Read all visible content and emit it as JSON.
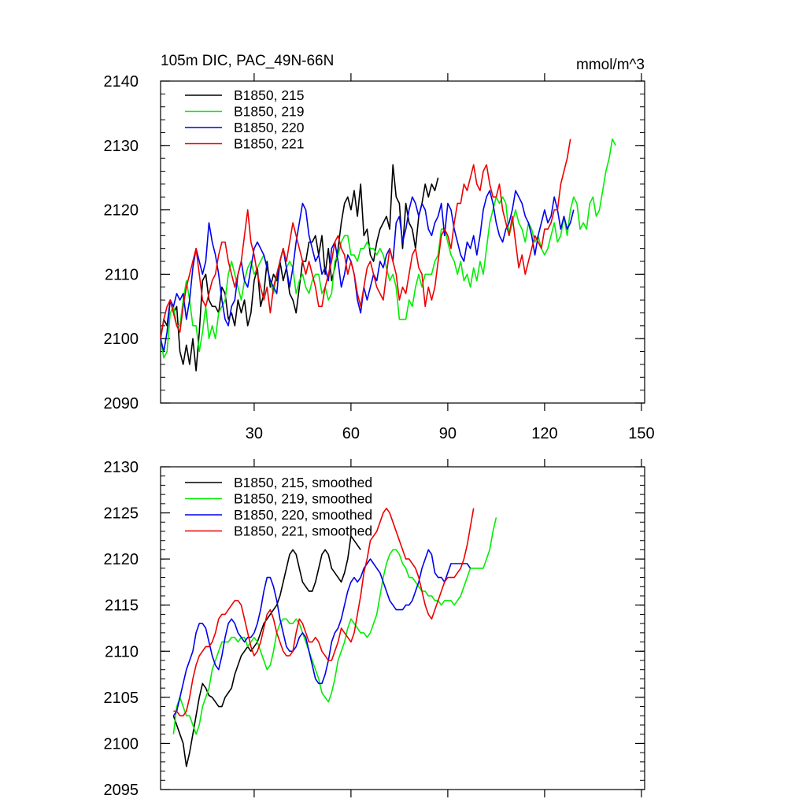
{
  "chart_data": [
    {
      "type": "line",
      "title_left": "105m DIC, PAC_49N-66N",
      "title_right": "mmol/m^3",
      "xlabel": "",
      "ylabel": "",
      "xlim": [
        1,
        151
      ],
      "ylim": [
        2090,
        2140
      ],
      "xticks": [
        30,
        60,
        90,
        120,
        150
      ],
      "yticks": [
        2090,
        2100,
        2110,
        2120,
        2130,
        2140
      ],
      "show_xtick_labels": true,
      "legend": "top-left",
      "series": [
        {
          "name": "B1850, 215",
          "color": "#000000",
          "x_start": 1,
          "values": [
            2100,
            2103,
            2102,
            2106,
            2104,
            2105,
            2098,
            2096,
            2099,
            2096,
            2100,
            2095,
            2101,
            2109,
            2110,
            2106,
            2105,
            2105,
            2104,
            2108,
            2107,
            2103,
            2104,
            2102,
            2106,
            2104,
            2106,
            2102,
            2104,
            2109,
            2111,
            2105,
            2107,
            2112,
            2108,
            2110,
            2109,
            2112,
            2109,
            2111,
            2107,
            2106,
            2104,
            2108,
            2112,
            2112,
            2115,
            2115,
            2116,
            2113,
            2116,
            2110,
            2114,
            2109,
            2111,
            2114,
            2118,
            2121,
            2122,
            2120,
            2123,
            2119,
            2124,
            2116,
            2117,
            2113,
            2112,
            2115,
            2117,
            2118,
            2119,
            2117,
            2127,
            2122,
            2121,
            2114,
            2121,
            2118,
            2117,
            2114,
            2119,
            2121,
            2124,
            2122,
            2124,
            2123,
            2125
          ]
        },
        {
          "name": "B1850, 219",
          "color": "#00ee00",
          "x_start": 1,
          "values": [
            2100,
            2097,
            2098,
            2104,
            2105,
            2102,
            2102,
            2106,
            2109,
            2106,
            2102,
            2102,
            2098,
            2101,
            2105,
            2100,
            2102,
            2100,
            2104,
            2105,
            2106,
            2110,
            2112,
            2110,
            2108,
            2106,
            2109,
            2111,
            2112,
            2110,
            2111,
            2112,
            2113,
            2111,
            2109,
            2107,
            2110,
            2112,
            2114,
            2111,
            2112,
            2111,
            2107,
            2109,
            2110,
            2108,
            2107,
            2109,
            2110,
            2110,
            2107,
            2108,
            2106,
            2107,
            2112,
            2113,
            2115,
            2116,
            2116,
            2113,
            2113,
            2112,
            2114,
            2114,
            2115,
            2114,
            2114,
            2113,
            2114,
            2113,
            2111,
            2109,
            2110,
            2108,
            2103,
            2103,
            2103,
            2106,
            2105,
            2108,
            2110,
            2108,
            2110,
            2110,
            2110,
            2112,
            2113,
            2117,
            2117,
            2115,
            2113,
            2112,
            2110,
            2112,
            2109,
            2110,
            2108,
            2111,
            2109,
            2112,
            2110,
            2114,
            2118,
            2120,
            2122,
            2121,
            2122,
            2121,
            2116,
            2118,
            2120,
            2118,
            2117,
            2115,
            2118,
            2117,
            2115,
            2116,
            2114,
            2113,
            2114,
            2116,
            2118,
            2115,
            2116,
            2119,
            2116,
            2120,
            2122,
            2121,
            2117,
            2118,
            2117,
            2121,
            2122,
            2119,
            2120,
            2123,
            2126,
            2128,
            2131,
            2130
          ]
        },
        {
          "name": "B1850, 220",
          "color": "#0000ee",
          "x_start": 1,
          "values": [
            2100,
            2098,
            2101,
            2106,
            2105,
            2107,
            2106,
            2107,
            2103,
            2106,
            2111,
            2114,
            2112,
            2110,
            2112,
            2118,
            2115,
            2113,
            2110,
            2106,
            2103,
            2102,
            2105,
            2106,
            2110,
            2112,
            2109,
            2108,
            2111,
            2114,
            2115,
            2114,
            2113,
            2111,
            2109,
            2108,
            2107,
            2112,
            2114,
            2111,
            2108,
            2111,
            2115,
            2118,
            2121,
            2120,
            2116,
            2114,
            2112,
            2113,
            2110,
            2111,
            2109,
            2114,
            2115,
            2112,
            2108,
            2110,
            2113,
            2112,
            2110,
            2106,
            2104,
            2108,
            2106,
            2108,
            2110,
            2109,
            2112,
            2111,
            2113,
            2114,
            2112,
            2118,
            2119,
            2115,
            2117,
            2120,
            2122,
            2121,
            2119,
            2121,
            2120,
            2117,
            2116,
            2118,
            2119,
            2121,
            2116,
            2121,
            2120,
            2117,
            2115,
            2113,
            2112,
            2115,
            2114,
            2116,
            2113,
            2116,
            2120,
            2122,
            2123,
            2121,
            2118,
            2116,
            2115,
            2117,
            2118,
            2120,
            2123,
            2122,
            2121,
            2119,
            2118,
            2116,
            2113,
            2116,
            2118,
            2120,
            2118,
            2119,
            2122,
            2120,
            2117,
            2119,
            2117,
            2118,
            2120
          ]
        },
        {
          "name": "B1850, 221",
          "color": "#ee0000",
          "x_start": 1,
          "values": [
            2100,
            2103,
            2105,
            2106,
            2104,
            2102,
            2101,
            2105,
            2108,
            2110,
            2112,
            2114,
            2110,
            2106,
            2105,
            2107,
            2109,
            2110,
            2113,
            2115,
            2115,
            2112,
            2110,
            2108,
            2110,
            2112,
            2116,
            2120,
            2115,
            2113,
            2110,
            2108,
            2106,
            2108,
            2104,
            2108,
            2110,
            2112,
            2114,
            2112,
            2115,
            2118,
            2116,
            2114,
            2112,
            2110,
            2112,
            2110,
            2108,
            2105,
            2105,
            2108,
            2110,
            2112,
            2115,
            2116,
            2114,
            2113,
            2110,
            2112,
            2110,
            2107,
            2105,
            2108,
            2111,
            2112,
            2110,
            2108,
            2107,
            2106,
            2110,
            2114,
            2112,
            2110,
            2106,
            2108,
            2107,
            2110,
            2113,
            2114,
            2111,
            2110,
            2105,
            2108,
            2106,
            2108,
            2112,
            2116,
            2117,
            2116,
            2114,
            2118,
            2121,
            2121,
            2124,
            2123,
            2125,
            2127,
            2124,
            2123,
            2126,
            2127,
            2124,
            2122,
            2122,
            2124,
            2120,
            2118,
            2116,
            2119,
            2115,
            2111,
            2113,
            2110,
            2112,
            2114,
            2116,
            2115,
            2114,
            2117,
            2117,
            2118,
            2120,
            2120,
            2124,
            2126,
            2128,
            2131
          ]
        }
      ]
    },
    {
      "type": "line",
      "title_left": "",
      "title_right": "",
      "xlabel": "",
      "ylabel": "",
      "xlim": [
        1,
        151
      ],
      "ylim": [
        2095,
        2130
      ],
      "xticks": [
        30,
        60,
        90,
        120,
        150
      ],
      "yticks": [
        2095,
        2100,
        2105,
        2110,
        2115,
        2120,
        2125,
        2130
      ],
      "show_xtick_labels": false,
      "legend": "top-left",
      "series": [
        {
          "name": "B1850, 215, smoothed",
          "color": "#000000",
          "x_start": 5,
          "values": [
            2103,
            2102,
            2101,
            2100,
            2097.5,
            2099,
            2101,
            2103,
            2105,
            2106.5,
            2106,
            2105.2,
            2105,
            2104.5,
            2104,
            2104,
            2105,
            2105.5,
            2106,
            2107.5,
            2108.5,
            2109.5,
            2110,
            2110.5,
            2110,
            2110.5,
            2111,
            2112,
            2113,
            2113.5,
            2114,
            2114.5,
            2115,
            2116,
            2117.5,
            2119,
            2120.5,
            2121,
            2120.5,
            2119,
            2117.5,
            2117,
            2116.5,
            2116.5,
            2117.5,
            2119,
            2120.5,
            2121,
            2120.5,
            2119,
            2118.5,
            2118,
            2117.5,
            2118.5,
            2120,
            2122.5,
            2122,
            2121.5,
            2121
          ]
        },
        {
          "name": "B1850, 219, smoothed",
          "color": "#00ee00",
          "x_start": 5,
          "values": [
            2101,
            2104,
            2105,
            2104,
            2103,
            2103,
            2102,
            2101,
            2102,
            2104,
            2105,
            2106,
            2108,
            2109,
            2110,
            2111,
            2111,
            2111,
            2111.5,
            2111.5,
            2111,
            2111.5,
            2111.5,
            2110.5,
            2111,
            2111.5,
            2111,
            2110,
            2109,
            2108,
            2108.5,
            2110,
            2112,
            2113,
            2113.5,
            2113.5,
            2113,
            2113,
            2113.5,
            2113,
            2112,
            2111,
            2110,
            2109,
            2108,
            2107,
            2105.5,
            2105,
            2104.5,
            2105.5,
            2107,
            2109,
            2110,
            2111,
            2112.5,
            2113.5,
            2113,
            2112.5,
            2112,
            2112,
            2111.5,
            2112,
            2113,
            2114,
            2116,
            2118,
            2119.5,
            2120.5,
            2121,
            2121,
            2120.5,
            2119.5,
            2119,
            2118,
            2118,
            2117.5,
            2117,
            2116.5,
            2116.5,
            2116,
            2116,
            2115.5,
            2115.5,
            2115,
            2115.5,
            2115.5,
            2115.5,
            2115,
            2115.5,
            2116,
            2117,
            2118,
            2119,
            2119,
            2119,
            2119,
            2119,
            2120,
            2121,
            2123,
            2124.5
          ]
        },
        {
          "name": "B1850, 220, smoothed",
          "color": "#0000ee",
          "x_start": 5,
          "values": [
            2103,
            2103.5,
            2105,
            2106.5,
            2108,
            2109,
            2110,
            2112,
            2113,
            2113,
            2112.5,
            2111,
            2109.5,
            2108.5,
            2108,
            2109.5,
            2111.5,
            2113,
            2113.5,
            2113,
            2112,
            2111.5,
            2111,
            2111.5,
            2111.5,
            2112,
            2113,
            2114.5,
            2116.5,
            2118,
            2118,
            2117,
            2115.5,
            2113.5,
            2112,
            2110.5,
            2110,
            2110,
            2110.5,
            2111.5,
            2112,
            2111.5,
            2110,
            2108.5,
            2107,
            2106.5,
            2106.5,
            2107.5,
            2109,
            2111,
            2112,
            2112.5,
            2113.5,
            2115,
            2116.5,
            2117.5,
            2118,
            2117.5,
            2118,
            2119,
            2119.5,
            2120,
            2119.5,
            2119,
            2118.5,
            2117.5,
            2116.5,
            2115.5,
            2115,
            2114.5,
            2114.5,
            2114.5,
            2115,
            2115,
            2115.5,
            2116.5,
            2117.5,
            2119,
            2120,
            2121,
            2120.5,
            2118.5,
            2118,
            2118,
            2117.5,
            2118.5,
            2119.5,
            2119.5,
            2119.5,
            2119.5,
            2119.5,
            2119.5,
            2119
          ]
        },
        {
          "name": "B1850, 221, smoothed",
          "color": "#ee0000",
          "x_start": 5,
          "values": [
            2103.5,
            2103.5,
            2103,
            2103,
            2103.5,
            2105,
            2107,
            2108.5,
            2109.5,
            2110,
            2110.5,
            2110.5,
            2111,
            2112,
            2113.5,
            2114,
            2114,
            2114.5,
            2115,
            2115.5,
            2115.5,
            2115,
            2113.5,
            2112,
            2110.5,
            2109.5,
            2110,
            2111,
            2112.5,
            2114,
            2114.5,
            2113.5,
            2112,
            2111,
            2110,
            2109.5,
            2109.5,
            2110,
            2112,
            2113.5,
            2113,
            2112,
            2111,
            2111,
            2111.5,
            2111,
            2110,
            2109.5,
            2109,
            2109,
            2110,
            2111,
            2112.5,
            2112,
            2111.5,
            2111,
            2112,
            2114,
            2116,
            2118.5,
            2120,
            2122,
            2122.5,
            2123,
            2124,
            2125,
            2125.5,
            2125,
            2124,
            2123,
            2122,
            2121,
            2120,
            2120,
            2119.5,
            2119,
            2118,
            2116.5,
            2115,
            2114,
            2113.5,
            2114.5,
            2115.5,
            2116.5,
            2117.5,
            2118,
            2118,
            2118,
            2118.5,
            2119,
            2120,
            2121.5,
            2123.5,
            2125.5
          ]
        }
      ]
    }
  ]
}
